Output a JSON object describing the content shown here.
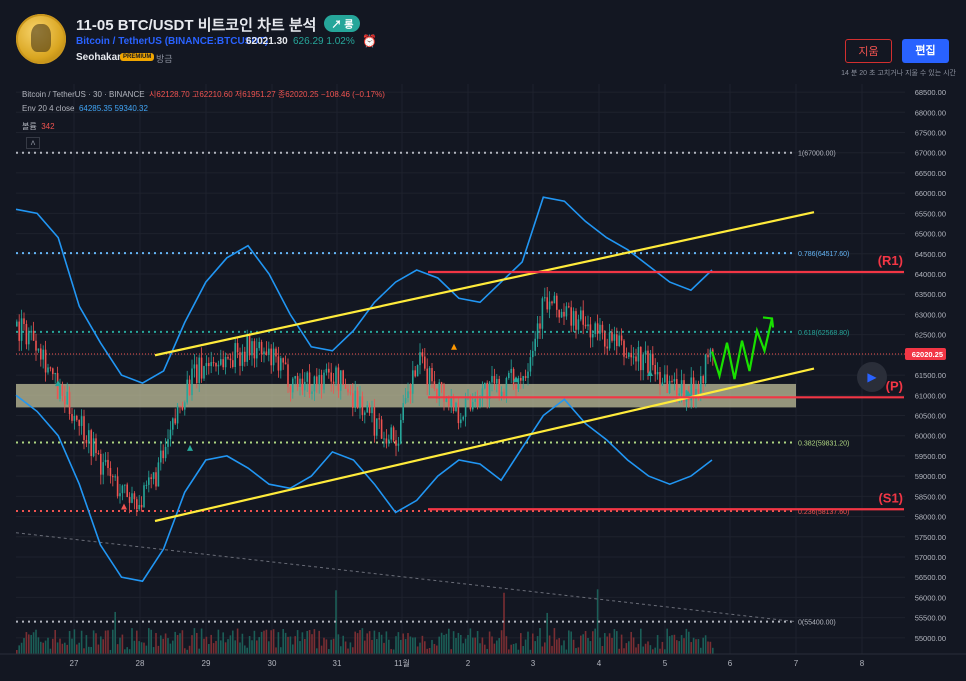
{
  "header": {
    "title": "11-05 BTC/USDT 비트코인 차트 분석",
    "trend_badge": "↗ 롱",
    "symbol": "Bitcoin / TetherUS (BINANCE:BTCUSDT)",
    "price": "62021.30",
    "change": "626.29  1.02%",
    "author": "Seohakant",
    "author_badge": "PREMIUM",
    "time_ago": "방금",
    "delete_label": "지움",
    "edit_label": "편집",
    "edit_note": "14 분 20 초 고치거나 지울 수 있는 시간"
  },
  "legend": {
    "symbol_line": "Bitcoin / TetherUS · 30 · BINANCE",
    "ohlc": "시62128.70  고62210.60  저61951.27  종62020.25  −108.46 (−0.17%)",
    "env_label": "Env 20 4 close",
    "env_values": "64285.35  59340.32",
    "volume_label": "볼륨",
    "volume_value": "342",
    "collapse_icon": "chevron-up-icon"
  },
  "colors": {
    "background": "#131722",
    "bull": "#26a69a",
    "bear": "#ef5350",
    "envelope": "#2196f3",
    "channel": "#ffeb3b",
    "pivot": "#f23645",
    "forecast": "#19e000",
    "zone": "#c8c6a0"
  },
  "chart_data": {
    "type": "line",
    "title": "",
    "ylim": [
      54600,
      68700
    ],
    "y_ticks": [
      "68500.00",
      "68000.00",
      "67500.00",
      "67000.00",
      "66500.00",
      "66000.00",
      "65500.00",
      "65000.00",
      "64500.00",
      "64000.00",
      "63500.00",
      "63000.00",
      "62500.00",
      "62000.00",
      "61500.00",
      "61000.00",
      "60500.00",
      "60000.00",
      "59500.00",
      "59000.00",
      "58500.00",
      "58000.00",
      "57500.00",
      "57000.00",
      "56500.00",
      "56000.00",
      "55500.00",
      "55000.00"
    ],
    "x_ticks": [
      "27",
      "28",
      "29",
      "30",
      "31",
      "11월",
      "2",
      "3",
      "4",
      "5",
      "6",
      "7",
      "8"
    ],
    "last_price_label": "62020.25",
    "fib_levels": [
      {
        "label": "1(67000.00)",
        "value": 67000,
        "color": "#b2b5be"
      },
      {
        "label": "0.786(64517.60)",
        "value": 64517.6,
        "color": "#64b5f6"
      },
      {
        "label": "0.618(62568.80)",
        "value": 62568.8,
        "color": "#26a69a"
      },
      {
        "label": "0.382(59831.20)",
        "value": 59831.2,
        "color": "#aed581"
      },
      {
        "label": "0.236(58137.60)",
        "value": 58137.6,
        "color": "#ef5350"
      },
      {
        "label": "0(55400.00)",
        "value": 55400,
        "color": "#b2b5be"
      }
    ],
    "pivot_levels": [
      {
        "label": "(R1)",
        "value": 64050
      },
      {
        "label": "(P)",
        "value": 60950
      },
      {
        "label": "(S1)",
        "value": 58180
      }
    ],
    "zone": {
      "from": 60700,
      "to": 61280
    },
    "channel_upper": [
      {
        "x": "27.9",
        "y": 61990
      },
      {
        "x": "7.3",
        "y": 65530
      }
    ],
    "channel_lower": [
      {
        "x": "27.9",
        "y": 57890
      },
      {
        "x": "7.3",
        "y": 61660
      }
    ],
    "forecast_path": [
      62080,
      61480,
      62300,
      61400,
      62350,
      61600,
      62600,
      62100,
      62900
    ],
    "series": [
      {
        "name": "Env 20 4 close upper",
        "values": [
          65600,
          65500,
          64900,
          63200,
          62300,
          61500,
          61300,
          61600,
          62800,
          63800,
          64400,
          64700,
          64000,
          63000,
          62200,
          62100,
          62600,
          63300,
          63800,
          64100,
          63900,
          63400,
          63300,
          63800,
          64300,
          65900,
          65800,
          65300,
          64900,
          64600,
          64200,
          63800,
          63600,
          64100
        ]
      },
      {
        "name": "Env 20 4 close lower",
        "values": [
          61000,
          60600,
          60000,
          58800,
          57300,
          56500,
          56400,
          57200,
          58600,
          59400,
          59500,
          59200,
          58800,
          58700,
          59000,
          59600,
          59400,
          58800,
          58100,
          58400,
          59000,
          59400,
          59300,
          58900,
          59700,
          60500,
          60900,
          60300,
          59900,
          59400,
          59000,
          58800,
          59000,
          59400
        ]
      },
      {
        "name": "BTCUSDT close",
        "values": [
          62700,
          62400,
          61000,
          60400,
          59300,
          58600,
          58400,
          59500,
          61200,
          61800,
          61900,
          62200,
          61900,
          61400,
          61300,
          61500,
          61000,
          60300,
          59900,
          61800,
          61200,
          60600,
          61100,
          61200,
          61500,
          63300,
          63000,
          62700,
          62400,
          62000,
          61800,
          61300,
          61100,
          62050
        ]
      }
    ]
  }
}
